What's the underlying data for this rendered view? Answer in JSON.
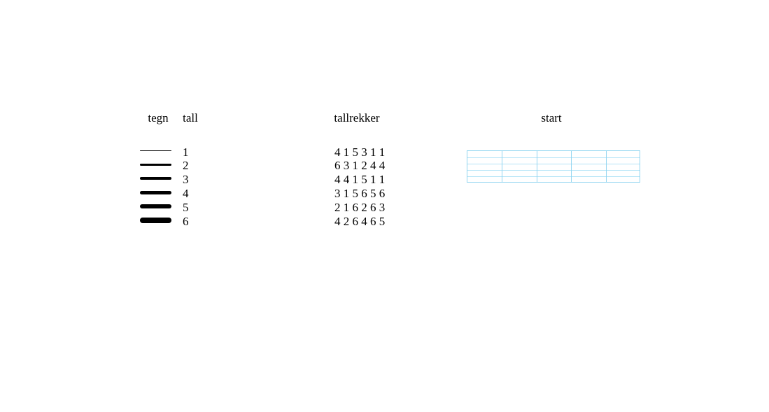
{
  "page": {
    "background_color": "#ffffff",
    "text_color": "#000000"
  },
  "legend": {
    "header_tegn": "tegn",
    "header_tall": "tall",
    "rows": [
      {
        "number": "1",
        "line_thickness": 1.7
      },
      {
        "number": "2",
        "line_thickness": 2.9
      },
      {
        "number": "3",
        "line_thickness": 4.1
      },
      {
        "number": "4",
        "line_thickness": 5.3
      },
      {
        "number": "5",
        "line_thickness": 6.5
      },
      {
        "number": "6",
        "line_thickness": 7.7
      }
    ]
  },
  "tallrekker": {
    "header": "tallrekker",
    "rows": [
      "4 1 5 3 1 1",
      "6 3 1 2 4 4",
      "4 4 1 5 1 1",
      "3 1 5 6 5 6",
      "2 1 6 2 6 3",
      "4 2 6 4 6 5"
    ]
  },
  "start": {
    "header": "start",
    "grid_rows": 5,
    "grid_cols": 5,
    "h_line_color": "#b5e4f7",
    "v_line_color": "#8fd4f0"
  }
}
